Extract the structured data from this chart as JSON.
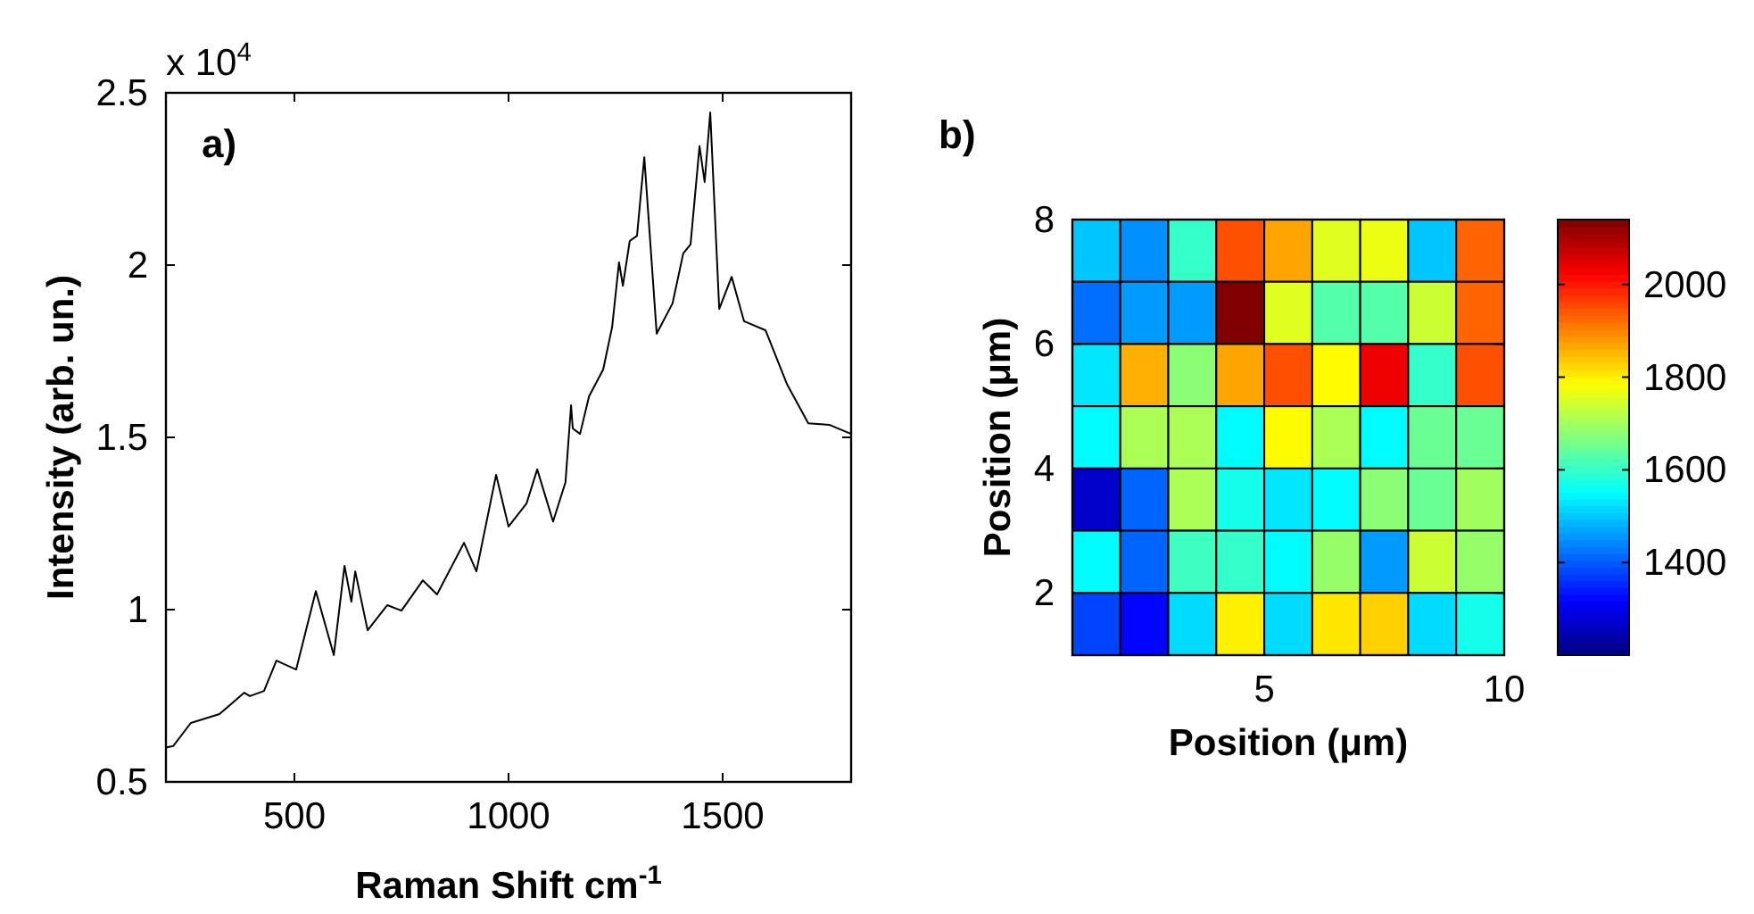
{
  "chart_data": [
    {
      "type": "line",
      "title": "a)",
      "xlabel": "Raman Shift cm$^{-1}$",
      "ylabel": "Intensity (arb. un.)",
      "annotations": [
        "x 10$^{4}$"
      ],
      "xlim": [
        200,
        1800
      ],
      "xticks": [
        500,
        1000,
        1500
      ],
      "ylim": [
        0.5,
        2.5
      ],
      "yticks": [
        0.5,
        1,
        1.5,
        2,
        2.5
      ],
      "series": [
        {
          "color": "#000000",
          "x": [
            200,
            217,
            258,
            325,
            383,
            396,
            429,
            458,
            504,
            550,
            592,
            617,
            633,
            642,
            671,
            717,
            750,
            800,
            833,
            896,
            925,
            971,
            1000,
            1042,
            1067,
            1104,
            1133,
            1146,
            1150,
            1167,
            1188,
            1221,
            1242,
            1258,
            1267,
            1283,
            1300,
            1317,
            1346,
            1383,
            1408,
            1425,
            1446,
            1458,
            1471,
            1492,
            1521,
            1550,
            1600,
            1650,
            1700,
            1750,
            1800
          ],
          "values": [
            0.6,
            0.604,
            0.671,
            0.697,
            0.759,
            0.749,
            0.764,
            0.852,
            0.826,
            1.054,
            0.868,
            1.127,
            1.023,
            1.111,
            0.94,
            1.013,
            0.997,
            1.085,
            1.044,
            1.194,
            1.111,
            1.391,
            1.241,
            1.308,
            1.407,
            1.256,
            1.37,
            1.593,
            1.526,
            1.51,
            1.619,
            1.697,
            1.821,
            2.008,
            1.94,
            2.07,
            2.085,
            2.313,
            1.801,
            1.889,
            2.034,
            2.06,
            2.345,
            2.241,
            2.443,
            1.873,
            1.966,
            1.837,
            1.811,
            1.655,
            1.541,
            1.536,
            1.51
          ]
        }
      ]
    },
    {
      "type": "heatmap",
      "title": "b)",
      "xlabel": "Position (μm)",
      "ylabel": "Position (μm)",
      "x": [
        1.5,
        2.5,
        3.5,
        4.5,
        5.5,
        6.5,
        7.5,
        8.5,
        9.5
      ],
      "y": [
        7.5,
        6.5,
        5.5,
        4.5,
        3.5,
        2.5,
        1.5
      ],
      "xlim": [
        1,
        10
      ],
      "xticks": [
        5,
        10
      ],
      "ylim": [
        1,
        8
      ],
      "yticks": [
        2,
        4,
        6,
        8
      ],
      "clim": [
        1200,
        2140
      ],
      "cticks": [
        1400,
        1600,
        1800,
        2000
      ],
      "cells": [
        [
          1500,
          1450,
          1600,
          1950,
          1870,
          1760,
          1770,
          1500,
          1930
        ],
        [
          1420,
          1460,
          1460,
          2140,
          1760,
          1630,
          1630,
          1740,
          1930
        ],
        [
          1530,
          1860,
          1680,
          1870,
          1950,
          1790,
          2040,
          1600,
          1950
        ],
        [
          1550,
          1710,
          1710,
          1550,
          1790,
          1710,
          1550,
          1650,
          1650
        ],
        [
          1270,
          1410,
          1710,
          1570,
          1530,
          1550,
          1680,
          1650,
          1700
        ],
        [
          1550,
          1410,
          1610,
          1600,
          1550,
          1690,
          1460,
          1740,
          1690
        ],
        [
          1380,
          1320,
          1520,
          1800,
          1520,
          1810,
          1830,
          1520,
          1570
        ]
      ]
    }
  ]
}
